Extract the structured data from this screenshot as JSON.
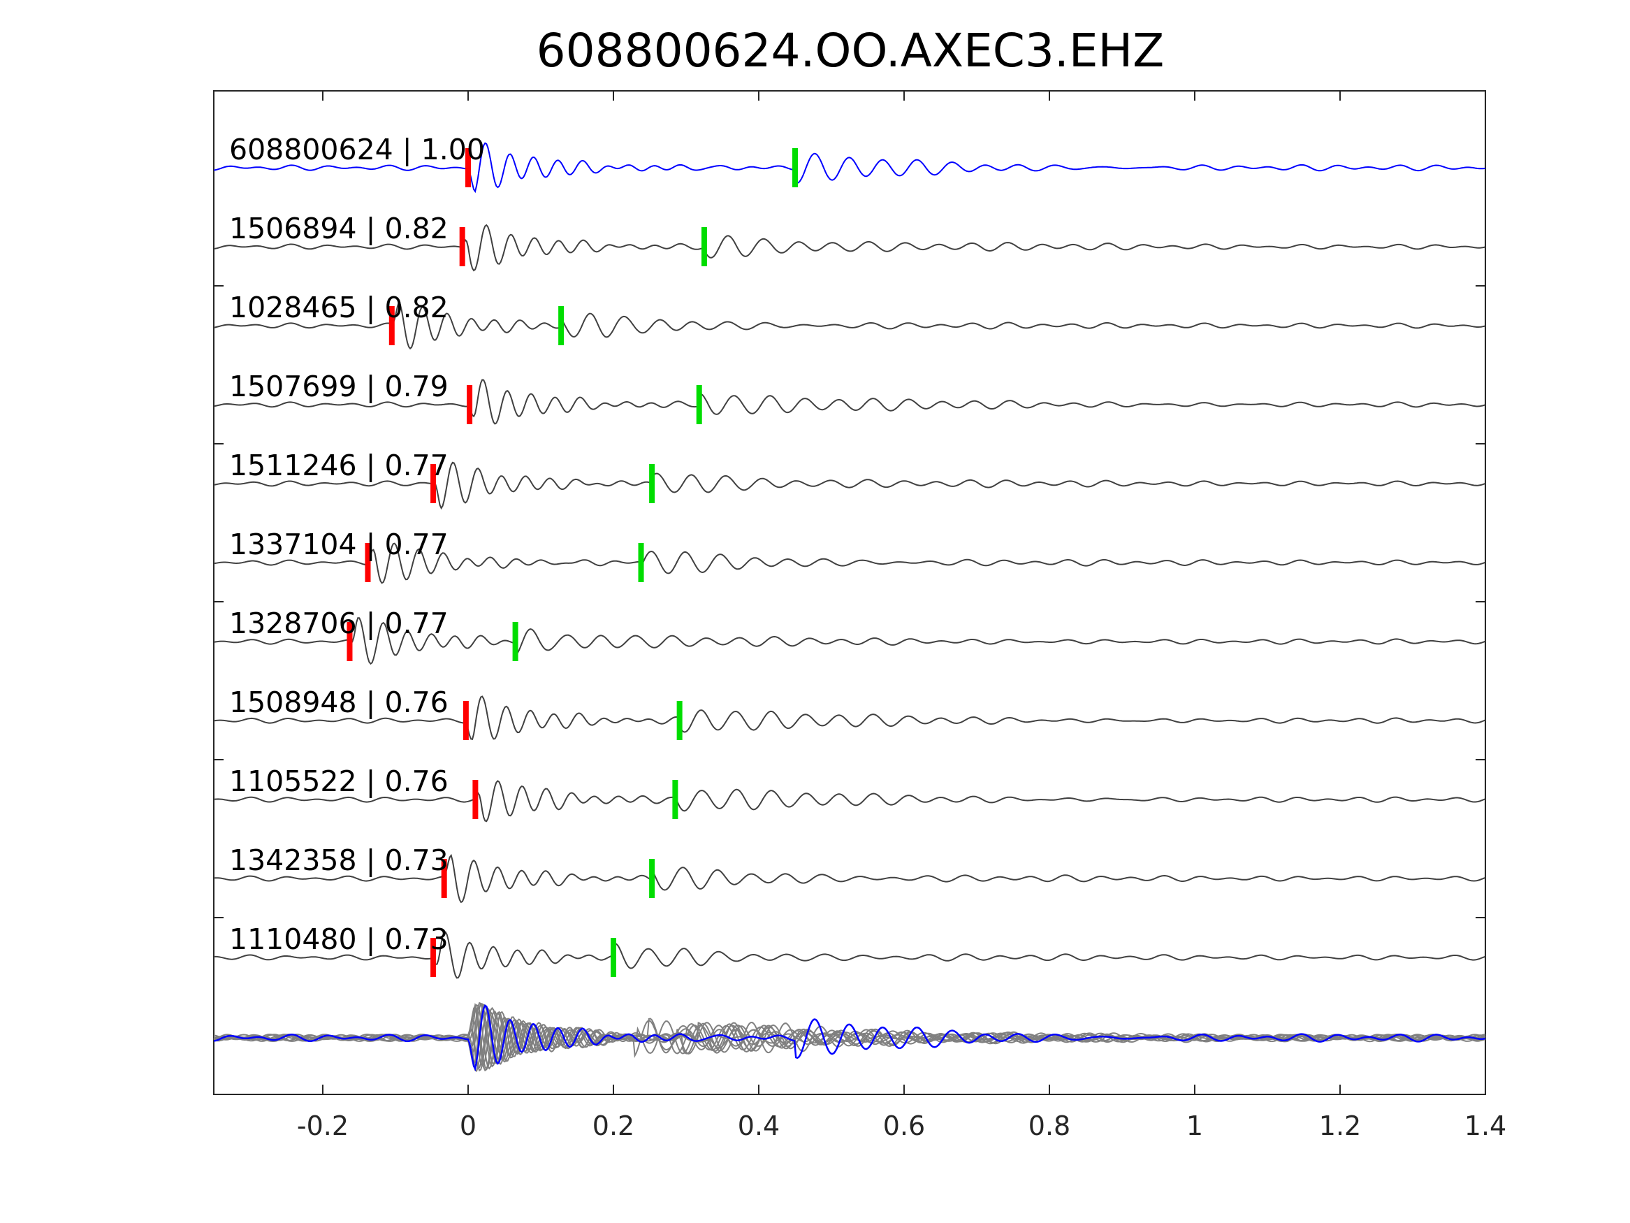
{
  "chart_data": {
    "type": "line",
    "title": "608800624.OO.AXEC3.EHZ",
    "xlabel": "",
    "ylabel": "",
    "xlim": [
      -0.35,
      1.4
    ],
    "xticks": [
      -0.2,
      0,
      0.2,
      0.4,
      0.6,
      0.8,
      1,
      1.2,
      1.4
    ],
    "xtick_labels": [
      "-0.2",
      "0",
      "0.2",
      "0.4",
      "0.6",
      "0.8",
      "1",
      "1.2",
      "1.4"
    ],
    "grid": false,
    "colors": {
      "reference": "#0000ff",
      "matches": "#404040",
      "stack": "#808080",
      "p_pick": "#ff0000",
      "s_pick": "#00dd00",
      "axes": "#262626"
    },
    "traces": [
      {
        "label": "608800624 | 1.00",
        "id": "608800624",
        "cc": 1.0,
        "reference": true,
        "p_pick": 0.0,
        "s_pick": 0.45
      },
      {
        "label": "1506894 | 0.82",
        "id": "1506894",
        "cc": 0.82,
        "p_pick": -0.008,
        "s_pick": 0.325
      },
      {
        "label": "1028465 | 0.82",
        "id": "1028465",
        "cc": 0.82,
        "p_pick": -0.105,
        "s_pick": 0.128
      },
      {
        "label": "1507699 | 0.79",
        "id": "1507699",
        "cc": 0.79,
        "p_pick": 0.002,
        "s_pick": 0.318
      },
      {
        "label": "1511246 | 0.77",
        "id": "1511246",
        "cc": 0.77,
        "p_pick": -0.048,
        "s_pick": 0.253
      },
      {
        "label": "1337104 | 0.77",
        "id": "1337104",
        "cc": 0.77,
        "p_pick": -0.138,
        "s_pick": 0.238
      },
      {
        "label": "1328706 | 0.77",
        "id": "1328706",
        "cc": 0.77,
        "p_pick": -0.163,
        "s_pick": 0.065
      },
      {
        "label": "1508948 | 0.76",
        "id": "1508948",
        "cc": 0.76,
        "p_pick": -0.003,
        "s_pick": 0.291
      },
      {
        "label": "1105522 | 0.76",
        "id": "1105522",
        "cc": 0.76,
        "p_pick": 0.01,
        "s_pick": 0.285
      },
      {
        "label": "1342358 | 0.73",
        "id": "1342358",
        "cc": 0.73,
        "p_pick": -0.033,
        "s_pick": 0.253
      },
      {
        "label": "1110480 | 0.73",
        "id": "1110480",
        "cc": 0.73,
        "p_pick": -0.048,
        "s_pick": 0.2
      }
    ]
  }
}
